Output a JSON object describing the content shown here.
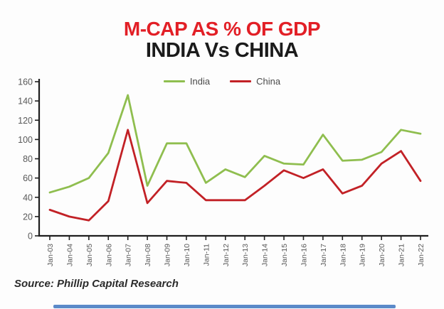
{
  "header": {
    "title": "M-CAP AS % OF GDP",
    "subtitle": "INDIA Vs CHINA"
  },
  "chart_data": {
    "type": "line",
    "title": "M-CAP AS % OF GDP",
    "subtitle": "INDIA Vs CHINA",
    "categories": [
      "Jan-03",
      "Jan-04",
      "Jan-05",
      "Jan-06",
      "Jan-07",
      "Jan-08",
      "Jan-09",
      "Jan-10",
      "Jan-11",
      "Jan-12",
      "Jan-13",
      "Jan-14",
      "Jan-15",
      "Jan-16",
      "Jan-17",
      "Jan-18",
      "Jan-19",
      "Jan-20",
      "Jan-21",
      "Jan-22"
    ],
    "series": [
      {
        "name": "India",
        "color": "#8fbe4f",
        "values": [
          45,
          51,
          60,
          86,
          146,
          52,
          96,
          96,
          55,
          69,
          61,
          83,
          75,
          74,
          105,
          78,
          79,
          87,
          110,
          106
        ]
      },
      {
        "name": "China",
        "color": "#c22126",
        "values": [
          27,
          20,
          16,
          36,
          110,
          34,
          57,
          55,
          37,
          37,
          37,
          52,
          68,
          60,
          69,
          44,
          52,
          75,
          88,
          57
        ]
      }
    ],
    "xlabel": "",
    "ylabel": "",
    "ylim": [
      0,
      160
    ],
    "ytick_step": 20,
    "grid": false,
    "legend_position": "top-center"
  },
  "footer": {
    "source": "Source: Phillip Capital Research"
  },
  "colors": {
    "title_red": "#e21f26",
    "subtitle_black": "#1b1b1b",
    "india_green": "#8fbe4f",
    "china_red": "#c22126",
    "axis_line": "#1f1f1f",
    "axis_text": "#595959",
    "legend_text": "#4a4a4a",
    "progress_bar_blue": "#5b8ac9"
  }
}
